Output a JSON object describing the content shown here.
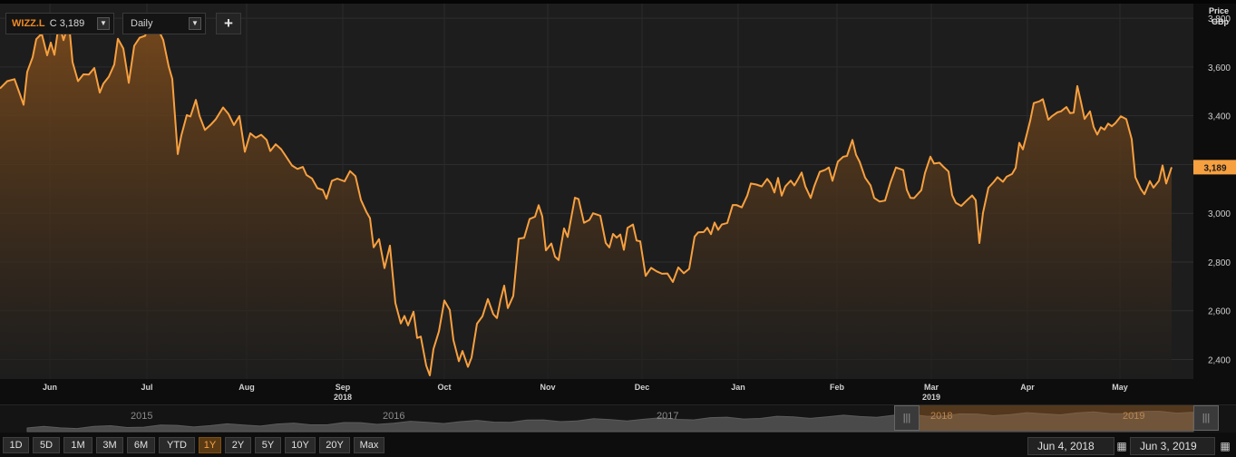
{
  "header": {
    "ticker": "WIZZ.L",
    "ticker_price": "C 3,189",
    "interval": "Daily",
    "add_label": "+"
  },
  "axis_head": {
    "line1": "Price",
    "line2": "GBp"
  },
  "colors": {
    "line": "#f7a040",
    "fill_top": "#7a4a1c",
    "badge": "#f7a040",
    "background": "#1d1d1d"
  },
  "chart_data": {
    "type": "area",
    "series_name": "WIZZ.L",
    "current_value": 3189,
    "current_label": "3,189",
    "ylim": [
      2320,
      3860
    ],
    "yticks": [
      2400,
      2600,
      2800,
      3000,
      3200,
      3400,
      3600,
      3800
    ],
    "ytick_labels": [
      "2,400",
      "2,600",
      "2,800",
      "3,000",
      "3,200",
      "3,400",
      "3,600",
      "3,800"
    ],
    "xlim": [
      0,
      1316
    ],
    "x_ticks": [
      {
        "pos": 55,
        "label": "Jun",
        "sub": ""
      },
      {
        "pos": 162,
        "label": "Jul",
        "sub": ""
      },
      {
        "pos": 272,
        "label": "Aug",
        "sub": ""
      },
      {
        "pos": 378,
        "label": "Sep",
        "sub": "2018"
      },
      {
        "pos": 490,
        "label": "Oct",
        "sub": ""
      },
      {
        "pos": 604,
        "label": "Nov",
        "sub": ""
      },
      {
        "pos": 708,
        "label": "Dec",
        "sub": ""
      },
      {
        "pos": 814,
        "label": "Jan",
        "sub": ""
      },
      {
        "pos": 923,
        "label": "Feb",
        "sub": ""
      },
      {
        "pos": 1027,
        "label": "Mar",
        "sub": "2019"
      },
      {
        "pos": 1133,
        "label": "Apr",
        "sub": ""
      },
      {
        "pos": 1235,
        "label": "May",
        "sub": ""
      }
    ],
    "points": [
      [
        0,
        3512
      ],
      [
        8,
        3542
      ],
      [
        16,
        3550
      ],
      [
        22,
        3488
      ],
      [
        26,
        3445
      ],
      [
        30,
        3580
      ],
      [
        36,
        3640
      ],
      [
        40,
        3714
      ],
      [
        46,
        3737
      ],
      [
        52,
        3648
      ],
      [
        56,
        3700
      ],
      [
        60,
        3650
      ],
      [
        65,
        3780
      ],
      [
        70,
        3710
      ],
      [
        76,
        3782
      ],
      [
        80,
        3620
      ],
      [
        86,
        3542
      ],
      [
        92,
        3570
      ],
      [
        98,
        3569
      ],
      [
        104,
        3596
      ],
      [
        110,
        3495
      ],
      [
        114,
        3532
      ],
      [
        120,
        3560
      ],
      [
        126,
        3610
      ],
      [
        130,
        3716
      ],
      [
        136,
        3676
      ],
      [
        142,
        3535
      ],
      [
        148,
        3687
      ],
      [
        154,
        3720
      ],
      [
        160,
        3728
      ],
      [
        168,
        3808
      ],
      [
        176,
        3742
      ],
      [
        180,
        3711
      ],
      [
        186,
        3603
      ],
      [
        190,
        3551
      ],
      [
        196,
        3243
      ],
      [
        200,
        3320
      ],
      [
        206,
        3403
      ],
      [
        210,
        3397
      ],
      [
        216,
        3465
      ],
      [
        220,
        3400
      ],
      [
        226,
        3342
      ],
      [
        232,
        3362
      ],
      [
        238,
        3386
      ],
      [
        246,
        3434
      ],
      [
        252,
        3407
      ],
      [
        258,
        3362
      ],
      [
        264,
        3399
      ],
      [
        270,
        3252
      ],
      [
        276,
        3328
      ],
      [
        282,
        3310
      ],
      [
        288,
        3322
      ],
      [
        294,
        3301
      ],
      [
        298,
        3255
      ],
      [
        304,
        3283
      ],
      [
        310,
        3263
      ],
      [
        316,
        3230
      ],
      [
        322,
        3196
      ],
      [
        328,
        3182
      ],
      [
        334,
        3190
      ],
      [
        338,
        3157
      ],
      [
        344,
        3143
      ],
      [
        350,
        3103
      ],
      [
        356,
        3096
      ],
      [
        360,
        3060
      ],
      [
        366,
        3133
      ],
      [
        372,
        3142
      ],
      [
        380,
        3131
      ],
      [
        386,
        3173
      ],
      [
        392,
        3152
      ],
      [
        398,
        3055
      ],
      [
        404,
        3006
      ],
      [
        408,
        2980
      ],
      [
        412,
        2860
      ],
      [
        418,
        2894
      ],
      [
        424,
        2775
      ],
      [
        430,
        2867
      ],
      [
        436,
        2632
      ],
      [
        442,
        2548
      ],
      [
        446,
        2579
      ],
      [
        450,
        2540
      ],
      [
        456,
        2596
      ],
      [
        460,
        2488
      ],
      [
        464,
        2494
      ],
      [
        470,
        2375
      ],
      [
        474,
        2335
      ],
      [
        478,
        2443
      ],
      [
        484,
        2515
      ],
      [
        490,
        2642
      ],
      [
        496,
        2603
      ],
      [
        500,
        2480
      ],
      [
        506,
        2393
      ],
      [
        510,
        2435
      ],
      [
        516,
        2370
      ],
      [
        520,
        2408
      ],
      [
        526,
        2547
      ],
      [
        532,
        2577
      ],
      [
        538,
        2648
      ],
      [
        544,
        2586
      ],
      [
        548,
        2570
      ],
      [
        552,
        2645
      ],
      [
        556,
        2703
      ],
      [
        560,
        2611
      ],
      [
        566,
        2661
      ],
      [
        572,
        2896
      ],
      [
        578,
        2899
      ],
      [
        584,
        2976
      ],
      [
        590,
        2986
      ],
      [
        594,
        3033
      ],
      [
        598,
        2987
      ],
      [
        602,
        2848
      ],
      [
        608,
        2876
      ],
      [
        612,
        2822
      ],
      [
        616,
        2808
      ],
      [
        622,
        2938
      ],
      [
        626,
        2903
      ],
      [
        634,
        3064
      ],
      [
        638,
        3058
      ],
      [
        644,
        2961
      ],
      [
        650,
        2973
      ],
      [
        654,
        3000
      ],
      [
        662,
        2990
      ],
      [
        668,
        2878
      ],
      [
        672,
        2860
      ],
      [
        676,
        2915
      ],
      [
        680,
        2900
      ],
      [
        684,
        2913
      ],
      [
        688,
        2850
      ],
      [
        692,
        2940
      ],
      [
        698,
        2954
      ],
      [
        702,
        2888
      ],
      [
        706,
        2885
      ],
      [
        712,
        2743
      ],
      [
        718,
        2776
      ],
      [
        724,
        2762
      ],
      [
        730,
        2752
      ],
      [
        736,
        2753
      ],
      [
        742,
        2718
      ],
      [
        748,
        2778
      ],
      [
        754,
        2754
      ],
      [
        760,
        2772
      ],
      [
        766,
        2904
      ],
      [
        770,
        2922
      ],
      [
        776,
        2923
      ],
      [
        780,
        2941
      ],
      [
        784,
        2914
      ],
      [
        788,
        2962
      ],
      [
        792,
        2932
      ],
      [
        796,
        2954
      ],
      [
        802,
        2960
      ],
      [
        808,
        3034
      ],
      [
        812,
        3034
      ],
      [
        818,
        3024
      ],
      [
        824,
        3072
      ],
      [
        828,
        3122
      ],
      [
        834,
        3118
      ],
      [
        840,
        3110
      ],
      [
        846,
        3141
      ],
      [
        850,
        3122
      ],
      [
        854,
        3085
      ],
      [
        858,
        3145
      ],
      [
        862,
        3072
      ],
      [
        866,
        3110
      ],
      [
        872,
        3134
      ],
      [
        876,
        3114
      ],
      [
        880,
        3140
      ],
      [
        884,
        3167
      ],
      [
        888,
        3111
      ],
      [
        894,
        3063
      ],
      [
        898,
        3112
      ],
      [
        904,
        3170
      ],
      [
        910,
        3178
      ],
      [
        914,
        3188
      ],
      [
        918,
        3133
      ],
      [
        924,
        3212
      ],
      [
        930,
        3232
      ],
      [
        934,
        3235
      ],
      [
        940,
        3301
      ],
      [
        944,
        3240
      ],
      [
        948,
        3211
      ],
      [
        954,
        3146
      ],
      [
        960,
        3114
      ],
      [
        964,
        3063
      ],
      [
        970,
        3048
      ],
      [
        976,
        3052
      ],
      [
        982,
        3127
      ],
      [
        988,
        3188
      ],
      [
        996,
        3177
      ],
      [
        1000,
        3096
      ],
      [
        1004,
        3063
      ],
      [
        1008,
        3062
      ],
      [
        1016,
        3095
      ],
      [
        1020,
        3165
      ],
      [
        1026,
        3232
      ],
      [
        1030,
        3204
      ],
      [
        1036,
        3207
      ],
      [
        1040,
        3192
      ],
      [
        1046,
        3171
      ],
      [
        1050,
        3074
      ],
      [
        1054,
        3043
      ],
      [
        1060,
        3030
      ],
      [
        1066,
        3052
      ],
      [
        1072,
        3073
      ],
      [
        1076,
        3053
      ],
      [
        1080,
        2878
      ],
      [
        1084,
        3002
      ],
      [
        1090,
        3105
      ],
      [
        1096,
        3129
      ],
      [
        1100,
        3148
      ],
      [
        1106,
        3129
      ],
      [
        1110,
        3150
      ],
      [
        1116,
        3161
      ],
      [
        1120,
        3186
      ],
      [
        1124,
        3289
      ],
      [
        1128,
        3262
      ],
      [
        1132,
        3320
      ],
      [
        1136,
        3379
      ],
      [
        1140,
        3452
      ],
      [
        1146,
        3459
      ],
      [
        1150,
        3468
      ],
      [
        1156,
        3384
      ],
      [
        1160,
        3398
      ],
      [
        1166,
        3414
      ],
      [
        1170,
        3418
      ],
      [
        1176,
        3436
      ],
      [
        1180,
        3411
      ],
      [
        1184,
        3413
      ],
      [
        1188,
        3522
      ],
      [
        1192,
        3457
      ],
      [
        1196,
        3387
      ],
      [
        1202,
        3418
      ],
      [
        1206,
        3354
      ],
      [
        1210,
        3323
      ],
      [
        1214,
        3353
      ],
      [
        1218,
        3343
      ],
      [
        1222,
        3368
      ],
      [
        1226,
        3357
      ],
      [
        1230,
        3370
      ],
      [
        1236,
        3398
      ],
      [
        1242,
        3386
      ],
      [
        1248,
        3304
      ],
      [
        1252,
        3148
      ],
      [
        1258,
        3100
      ],
      [
        1262,
        3078
      ],
      [
        1268,
        3132
      ],
      [
        1272,
        3105
      ],
      [
        1278,
        3133
      ],
      [
        1282,
        3196
      ],
      [
        1286,
        3122
      ],
      [
        1292,
        3189
      ]
    ]
  },
  "navigator": {
    "years": [
      {
        "pos": 158,
        "label": "2015"
      },
      {
        "pos": 436,
        "label": "2016"
      },
      {
        "pos": 738,
        "label": "2017"
      },
      {
        "pos": 1040,
        "label": "2018"
      },
      {
        "pos": 1252,
        "label": "2019"
      }
    ],
    "handle_glyph": "|||"
  },
  "range_buttons": [
    "1D",
    "5D",
    "1M",
    "3M",
    "6M",
    "YTD",
    "1Y",
    "2Y",
    "5Y",
    "10Y",
    "20Y",
    "Max"
  ],
  "range_active": "1Y",
  "date_from": "Jun 4, 2018",
  "date_to": "Jun 3, 2019",
  "calendar_glyph": "▦"
}
